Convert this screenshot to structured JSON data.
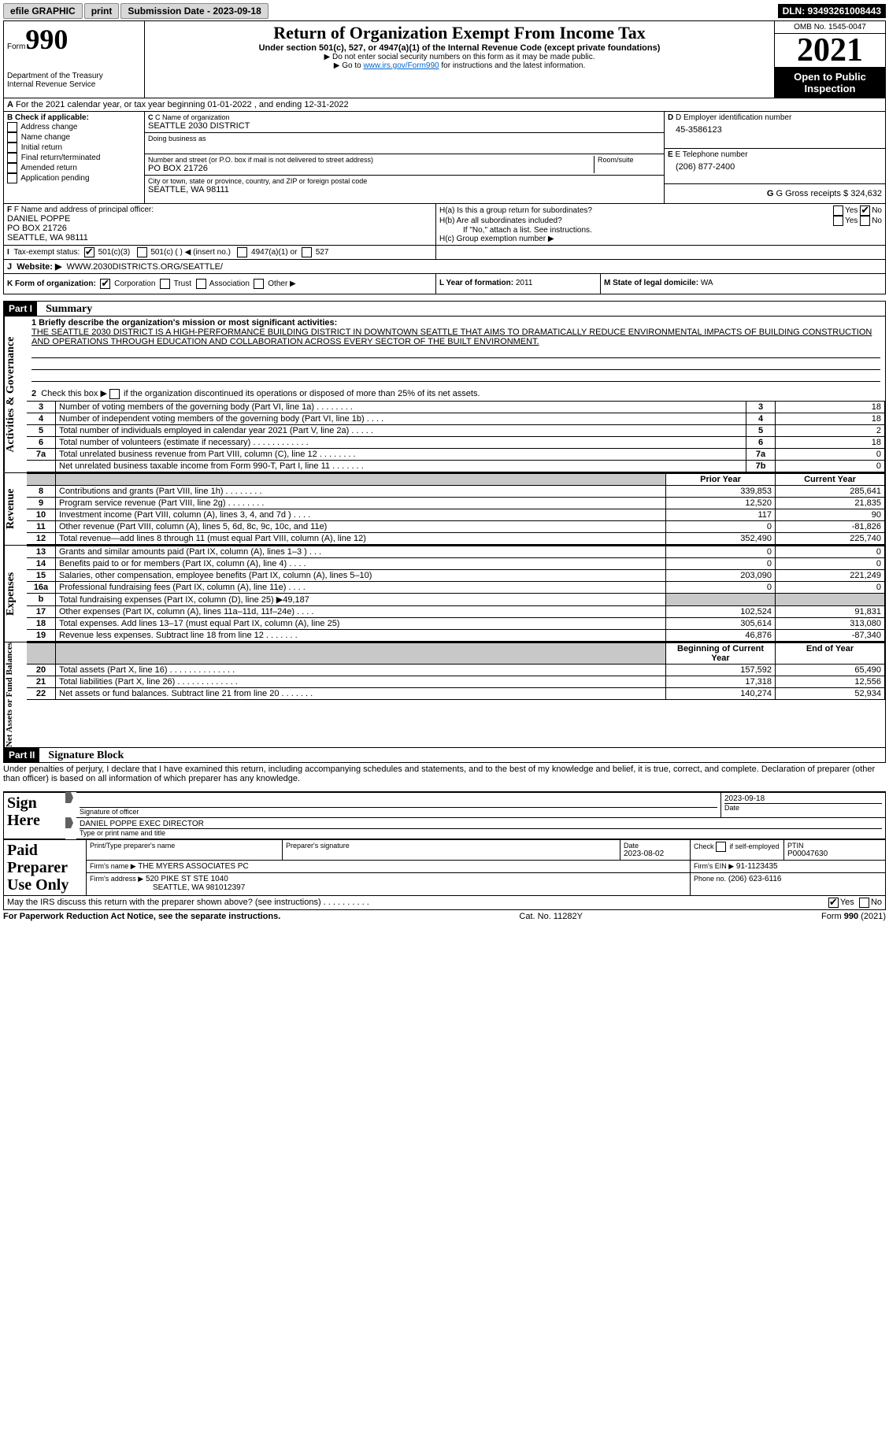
{
  "top_bar": {
    "efile": "efile GRAPHIC",
    "print": "print",
    "submission": "Submission Date - 2023-09-18",
    "dln": "DLN: 93493261008443"
  },
  "header": {
    "form_prefix": "Form",
    "form_number": "990",
    "title": "Return of Organization Exempt From Income Tax",
    "subtitle": "Under section 501(c), 527, or 4947(a)(1) of the Internal Revenue Code (except private foundations)",
    "note1": "▶ Do not enter social security numbers on this form as it may be made public.",
    "note2_pre": "▶ Go to ",
    "note2_link": "www.irs.gov/Form990",
    "note2_post": " for instructions and the latest information.",
    "dept": "Department of the Treasury",
    "irs": "Internal Revenue Service",
    "omb": "OMB No. 1545-0047",
    "year": "2021",
    "open": "Open to Public Inspection"
  },
  "period": {
    "line": "For the 2021 calendar year, or tax year beginning 01-01-2022    , and ending 12-31-2022",
    "prefix": "A"
  },
  "section_b": {
    "label": "B Check if applicable:",
    "items": [
      "Address change",
      "Name change",
      "Initial return",
      "Final return/terminated",
      "Amended return",
      "Application pending"
    ]
  },
  "section_c": {
    "name_label": "C Name of organization",
    "name": "SEATTLE 2030 DISTRICT",
    "dba_label": "Doing business as",
    "addr_label": "Number and street (or P.O. box if mail is not delivered to street address)",
    "room_label": "Room/suite",
    "addr": "PO BOX 21726",
    "city_label": "City or town, state or province, country, and ZIP or foreign postal code",
    "city": "SEATTLE, WA  98111"
  },
  "section_d": {
    "label": "D Employer identification number",
    "value": "45-3586123"
  },
  "section_e": {
    "label": "E Telephone number",
    "value": "(206) 877-2400"
  },
  "section_g": {
    "label": "G Gross receipts $",
    "value": "324,632"
  },
  "section_f": {
    "label": "F  Name and address of principal officer:",
    "name": "DANIEL POPPE",
    "addr1": "PO BOX 21726",
    "addr2": "SEATTLE, WA  98111"
  },
  "section_h": {
    "ha": "H(a)  Is this a group return for subordinates?",
    "hb": "H(b)  Are all subordinates included?",
    "hb_note": "If \"No,\" attach a list. See instructions.",
    "hc": "H(c)  Group exemption number ▶",
    "yes": "Yes",
    "no": "No"
  },
  "section_i": {
    "label": "Tax-exempt status:",
    "prefix": "I",
    "opts": [
      "501(c)(3)",
      "501(c) (   ) ◀ (insert no.)",
      "4947(a)(1) or",
      "527"
    ]
  },
  "section_j": {
    "label": "Website: ▶",
    "prefix": "J",
    "value": "WWW.2030DISTRICTS.ORG/SEATTLE/"
  },
  "section_k": {
    "label": "K Form of organization:",
    "opts": [
      "Corporation",
      "Trust",
      "Association",
      "Other ▶"
    ]
  },
  "section_l": {
    "label": "L Year of formation:",
    "value": "2011"
  },
  "section_m": {
    "label": "M State of legal domicile:",
    "value": "WA"
  },
  "part1": {
    "hdr": "Part I",
    "title": "Summary",
    "q1": "1  Briefly describe the organization's mission or most significant activities:",
    "mission": "THE SEATTLE 2030 DISTRICT IS A HIGH-PERFORMANCE BUILDING DISTRICT IN DOWNTOWN SEATTLE THAT AIMS TO DRAMATICALLY REDUCE ENVIRONMENTAL IMPACTS OF BUILDING CONSTRUCTION AND OPERATIONS THROUGH EDUCATION AND COLLABORATION ACROSS EVERY SECTOR OF THE BUILT ENVIRONMENT.",
    "q2": "2   Check this box ▶       if the organization discontinued its operations or disposed of more than 25% of its net assets."
  },
  "governance": {
    "label": "Activities & Governance",
    "rows": [
      {
        "n": "3",
        "d": "Number of voting members of the governing body (Part VI, line 1a)   .    .    .    .    .    .    .    .",
        "k": "3",
        "v": "18"
      },
      {
        "n": "4",
        "d": "Number of independent voting members of the governing body (Part VI, line 1b)    .    .    .    .",
        "k": "4",
        "v": "18"
      },
      {
        "n": "5",
        "d": "Total number of individuals employed in calendar year 2021 (Part V, line 2a)    .    .    .    .    .",
        "k": "5",
        "v": "2"
      },
      {
        "n": "6",
        "d": "Total number of volunteers (estimate if necessary)    .    .    .    .    .    .    .    .    .    .    .    .",
        "k": "6",
        "v": "18"
      },
      {
        "n": "7a",
        "d": "Total unrelated business revenue from Part VIII, column (C), line 12   .    .    .    .    .    .    .    .",
        "k": "7a",
        "v": "0"
      },
      {
        "n": "",
        "d": "Net unrelated business taxable income from Form 990-T, Part I, line 11    .    .    .    .    .    .    .",
        "k": "7b",
        "v": "0"
      }
    ]
  },
  "revenue": {
    "label": "Revenue",
    "col1": "Prior Year",
    "col2": "Current Year",
    "rows": [
      {
        "n": "8",
        "d": "Contributions and grants (Part VIII, line 1h)    .    .    .    .    .    .    .    .",
        "p": "339,853",
        "c": "285,641"
      },
      {
        "n": "9",
        "d": "Program service revenue (Part VIII, line 2g)    .    .    .    .    .    .    .    .",
        "p": "12,520",
        "c": "21,835"
      },
      {
        "n": "10",
        "d": "Investment income (Part VIII, column (A), lines 3, 4, and 7d )    .    .    .    .",
        "p": "117",
        "c": "90"
      },
      {
        "n": "11",
        "d": "Other revenue (Part VIII, column (A), lines 5, 6d, 8c, 9c, 10c, and 11e)",
        "p": "0",
        "c": "-81,826"
      },
      {
        "n": "12",
        "d": "Total revenue—add lines 8 through 11 (must equal Part VIII, column (A), line 12)",
        "p": "352,490",
        "c": "225,740"
      }
    ]
  },
  "expenses": {
    "label": "Expenses",
    "rows": [
      {
        "n": "13",
        "d": "Grants and similar amounts paid (Part IX, column (A), lines 1–3 )    .    .    .",
        "p": "0",
        "c": "0"
      },
      {
        "n": "14",
        "d": "Benefits paid to or for members (Part IX, column (A), line 4)    .    .    .    .",
        "p": "0",
        "c": "0"
      },
      {
        "n": "15",
        "d": "Salaries, other compensation, employee benefits (Part IX, column (A), lines 5–10)",
        "p": "203,090",
        "c": "221,249"
      },
      {
        "n": "16a",
        "d": "Professional fundraising fees (Part IX, column (A), line 11e)    .    .    .    .",
        "p": "0",
        "c": "0"
      },
      {
        "n": "b",
        "d": "Total fundraising expenses (Part IX, column (D), line 25) ▶49,187",
        "p": "",
        "c": "",
        "shade": true
      },
      {
        "n": "17",
        "d": "Other expenses (Part IX, column (A), lines 11a–11d, 11f–24e)    .    .    .    .",
        "p": "102,524",
        "c": "91,831"
      },
      {
        "n": "18",
        "d": "Total expenses. Add lines 13–17 (must equal Part IX, column (A), line 25)",
        "p": "305,614",
        "c": "313,080"
      },
      {
        "n": "19",
        "d": "Revenue less expenses. Subtract line 18 from line 12   .    .    .    .    .    .    .",
        "p": "46,876",
        "c": "-87,340"
      }
    ]
  },
  "net": {
    "label": "Net Assets or Fund Balances",
    "col1": "Beginning of Current Year",
    "col2": "End of Year",
    "rows": [
      {
        "n": "20",
        "d": "Total assets (Part X, line 16)   .    .    .    .    .    .    .    .    .    .    .    .    .    .",
        "p": "157,592",
        "c": "65,490"
      },
      {
        "n": "21",
        "d": "Total liabilities (Part X, line 26)   .    .    .    .    .    .    .    .    .    .    .    .    .",
        "p": "17,318",
        "c": "12,556"
      },
      {
        "n": "22",
        "d": "Net assets or fund balances. Subtract line 21 from line 20   .    .    .    .    .    .    .",
        "p": "140,274",
        "c": "52,934"
      }
    ]
  },
  "part2": {
    "hdr": "Part II",
    "title": "Signature Block",
    "decl": "Under penalties of perjury, I declare that I have examined this return, including accompanying schedules and statements, and to the best of my knowledge and belief, it is true, correct, and complete. Declaration of preparer (other than officer) is based on all information of which preparer has any knowledge."
  },
  "sign": {
    "label": "Sign Here",
    "sig_label": "Signature of officer",
    "date_label": "Date",
    "date": "2023-09-18",
    "name": "DANIEL POPPE  EXEC DIRECTOR",
    "name_label": "Type or print name and title"
  },
  "paid": {
    "label": "Paid Preparer Use Only",
    "h1": "Print/Type preparer's name",
    "h2": "Preparer's signature",
    "h3": "Date",
    "h4": "Check         if self-employed",
    "h5": "PTIN",
    "date": "2023-08-02",
    "ptin": "P00047630",
    "firm_label": "Firm's name    ▶",
    "firm": "THE MYERS ASSOCIATES PC",
    "ein_label": "Firm's EIN ▶",
    "ein": "91-1123435",
    "addr_label": "Firm's address ▶",
    "addr": "520 PIKE ST STE 1040",
    "addr2": "SEATTLE, WA  981012397",
    "phone_label": "Phone no.",
    "phone": "(206) 623-6116"
  },
  "footer": {
    "q": "May the IRS discuss this return with the preparer shown above? (see instructions)    .    .    .    .    .    .    .    .    .    .",
    "yes": "Yes",
    "no": "No",
    "pra": "For Paperwork Reduction Act Notice, see the separate instructions.",
    "cat": "Cat. No. 11282Y",
    "form": "Form 990 (2021)"
  }
}
